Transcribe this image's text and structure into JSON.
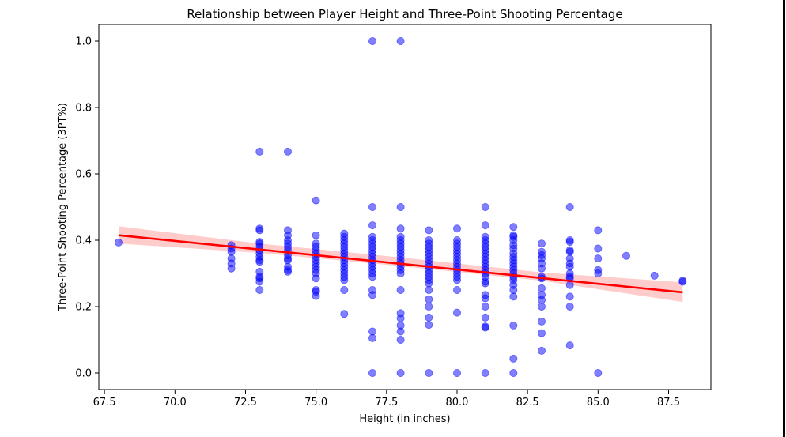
{
  "chart_data": {
    "type": "scatter",
    "title": "Relationship between Player Height and Three-Point Shooting Percentage",
    "xlabel": "Height (in inches)",
    "ylabel": "Three-Point Shooting Percentage (3PT%)",
    "xlim": [
      67.3,
      89.0
    ],
    "ylim": [
      -0.05,
      1.05
    ],
    "xticks": [
      67.5,
      70.0,
      72.5,
      75.0,
      77.5,
      80.0,
      82.5,
      85.0,
      87.5
    ],
    "xtick_labels": [
      "67.5",
      "70.0",
      "72.5",
      "75.0",
      "77.5",
      "80.0",
      "82.5",
      "85.0",
      "87.5"
    ],
    "yticks": [
      0.0,
      0.2,
      0.4,
      0.6,
      0.8,
      1.0
    ],
    "ytick_labels": [
      "0.0",
      "0.2",
      "0.4",
      "0.6",
      "0.8",
      "1.0"
    ],
    "grid": false,
    "colors": {
      "points": "#0000ff",
      "regression": "#ff0000",
      "band": "#ffcccc"
    },
    "regression": {
      "x": [
        68,
        88
      ],
      "y": [
        0.415,
        0.243
      ]
    },
    "confidence_band": {
      "x": [
        68,
        73,
        78,
        83,
        88
      ],
      "lower": [
        0.39,
        0.362,
        0.322,
        0.278,
        0.214
      ],
      "upper": [
        0.442,
        0.39,
        0.348,
        0.303,
        0.273
      ]
    },
    "points": [
      [
        68,
        0.393
      ],
      [
        72,
        0.385
      ],
      [
        72,
        0.375
      ],
      [
        72,
        0.365
      ],
      [
        72,
        0.345
      ],
      [
        72,
        0.33
      ],
      [
        72,
        0.315
      ],
      [
        73,
        0.667
      ],
      [
        73,
        0.435
      ],
      [
        73,
        0.43
      ],
      [
        73,
        0.395
      ],
      [
        73,
        0.39
      ],
      [
        73,
        0.38
      ],
      [
        73,
        0.37
      ],
      [
        73,
        0.36
      ],
      [
        73,
        0.35
      ],
      [
        73,
        0.34
      ],
      [
        73,
        0.335
      ],
      [
        73,
        0.305
      ],
      [
        73,
        0.29
      ],
      [
        73,
        0.285
      ],
      [
        73,
        0.275
      ],
      [
        73,
        0.25
      ],
      [
        74,
        0.667
      ],
      [
        74,
        0.43
      ],
      [
        74,
        0.415
      ],
      [
        74,
        0.4
      ],
      [
        74,
        0.39
      ],
      [
        74,
        0.38
      ],
      [
        74,
        0.37
      ],
      [
        74,
        0.355
      ],
      [
        74,
        0.345
      ],
      [
        74,
        0.34
      ],
      [
        74,
        0.32
      ],
      [
        74,
        0.31
      ],
      [
        74,
        0.305
      ],
      [
        75,
        0.52
      ],
      [
        75,
        0.415
      ],
      [
        75,
        0.39
      ],
      [
        75,
        0.38
      ],
      [
        75,
        0.37
      ],
      [
        75,
        0.36
      ],
      [
        75,
        0.35
      ],
      [
        75,
        0.34
      ],
      [
        75,
        0.33
      ],
      [
        75,
        0.32
      ],
      [
        75,
        0.31
      ],
      [
        75,
        0.3
      ],
      [
        75,
        0.285
      ],
      [
        75,
        0.25
      ],
      [
        75,
        0.245
      ],
      [
        75,
        0.232
      ],
      [
        76,
        0.42
      ],
      [
        76,
        0.41
      ],
      [
        76,
        0.4
      ],
      [
        76,
        0.39
      ],
      [
        76,
        0.38
      ],
      [
        76,
        0.37
      ],
      [
        76,
        0.36
      ],
      [
        76,
        0.35
      ],
      [
        76,
        0.34
      ],
      [
        76,
        0.33
      ],
      [
        76,
        0.32
      ],
      [
        76,
        0.31
      ],
      [
        76,
        0.3
      ],
      [
        76,
        0.29
      ],
      [
        76,
        0.28
      ],
      [
        76,
        0.25
      ],
      [
        76,
        0.178
      ],
      [
        77,
        1.0
      ],
      [
        77,
        0.5
      ],
      [
        77,
        0.445
      ],
      [
        77,
        0.41
      ],
      [
        77,
        0.4
      ],
      [
        77,
        0.39
      ],
      [
        77,
        0.38
      ],
      [
        77,
        0.37
      ],
      [
        77,
        0.36
      ],
      [
        77,
        0.35
      ],
      [
        77,
        0.34
      ],
      [
        77,
        0.33
      ],
      [
        77,
        0.32
      ],
      [
        77,
        0.31
      ],
      [
        77,
        0.3
      ],
      [
        77,
        0.29
      ],
      [
        77,
        0.25
      ],
      [
        77,
        0.235
      ],
      [
        77,
        0.125
      ],
      [
        77,
        0.105
      ],
      [
        77,
        0.0
      ],
      [
        78,
        1.0
      ],
      [
        78,
        0.5
      ],
      [
        78,
        0.435
      ],
      [
        78,
        0.41
      ],
      [
        78,
        0.4
      ],
      [
        78,
        0.39
      ],
      [
        78,
        0.38
      ],
      [
        78,
        0.37
      ],
      [
        78,
        0.36
      ],
      [
        78,
        0.35
      ],
      [
        78,
        0.34
      ],
      [
        78,
        0.33
      ],
      [
        78,
        0.32
      ],
      [
        78,
        0.31
      ],
      [
        78,
        0.3
      ],
      [
        78,
        0.25
      ],
      [
        78,
        0.18
      ],
      [
        78,
        0.165
      ],
      [
        78,
        0.143
      ],
      [
        78,
        0.125
      ],
      [
        78,
        0.1
      ],
      [
        78,
        0.0
      ],
      [
        79,
        0.43
      ],
      [
        79,
        0.4
      ],
      [
        79,
        0.39
      ],
      [
        79,
        0.38
      ],
      [
        79,
        0.37
      ],
      [
        79,
        0.36
      ],
      [
        79,
        0.35
      ],
      [
        79,
        0.34
      ],
      [
        79,
        0.33
      ],
      [
        79,
        0.32
      ],
      [
        79,
        0.31
      ],
      [
        79,
        0.3
      ],
      [
        79,
        0.29
      ],
      [
        79,
        0.28
      ],
      [
        79,
        0.27
      ],
      [
        79,
        0.25
      ],
      [
        79,
        0.222
      ],
      [
        79,
        0.2
      ],
      [
        79,
        0.167
      ],
      [
        79,
        0.145
      ],
      [
        79,
        0.0
      ],
      [
        80,
        0.435
      ],
      [
        80,
        0.4
      ],
      [
        80,
        0.39
      ],
      [
        80,
        0.38
      ],
      [
        80,
        0.37
      ],
      [
        80,
        0.36
      ],
      [
        80,
        0.35
      ],
      [
        80,
        0.34
      ],
      [
        80,
        0.33
      ],
      [
        80,
        0.32
      ],
      [
        80,
        0.31
      ],
      [
        80,
        0.3
      ],
      [
        80,
        0.29
      ],
      [
        80,
        0.28
      ],
      [
        80,
        0.25
      ],
      [
        80,
        0.182
      ],
      [
        80,
        0.0
      ],
      [
        81,
        0.5
      ],
      [
        81,
        0.445
      ],
      [
        81,
        0.41
      ],
      [
        81,
        0.4
      ],
      [
        81,
        0.39
      ],
      [
        81,
        0.38
      ],
      [
        81,
        0.37
      ],
      [
        81,
        0.36
      ],
      [
        81,
        0.35
      ],
      [
        81,
        0.34
      ],
      [
        81,
        0.33
      ],
      [
        81,
        0.32
      ],
      [
        81,
        0.31
      ],
      [
        81,
        0.3
      ],
      [
        81,
        0.29
      ],
      [
        81,
        0.275
      ],
      [
        81,
        0.27
      ],
      [
        81,
        0.235
      ],
      [
        81,
        0.225
      ],
      [
        81,
        0.2
      ],
      [
        81,
        0.167
      ],
      [
        81,
        0.14
      ],
      [
        81,
        0.137
      ],
      [
        81,
        0.0
      ],
      [
        82,
        0.44
      ],
      [
        82,
        0.415
      ],
      [
        82,
        0.41
      ],
      [
        82,
        0.4
      ],
      [
        82,
        0.385
      ],
      [
        82,
        0.375
      ],
      [
        82,
        0.36
      ],
      [
        82,
        0.35
      ],
      [
        82,
        0.34
      ],
      [
        82,
        0.33
      ],
      [
        82,
        0.32
      ],
      [
        82,
        0.31
      ],
      [
        82,
        0.3
      ],
      [
        82,
        0.29
      ],
      [
        82,
        0.28
      ],
      [
        82,
        0.265
      ],
      [
        82,
        0.25
      ],
      [
        82,
        0.23
      ],
      [
        82,
        0.143
      ],
      [
        82,
        0.043
      ],
      [
        82,
        0.0
      ],
      [
        83,
        0.39
      ],
      [
        83,
        0.365
      ],
      [
        83,
        0.355
      ],
      [
        83,
        0.345
      ],
      [
        83,
        0.33
      ],
      [
        83,
        0.315
      ],
      [
        83,
        0.29
      ],
      [
        83,
        0.285
      ],
      [
        83,
        0.255
      ],
      [
        83,
        0.235
      ],
      [
        83,
        0.22
      ],
      [
        83,
        0.2
      ],
      [
        83,
        0.155
      ],
      [
        83,
        0.12
      ],
      [
        83,
        0.067
      ],
      [
        84,
        0.5
      ],
      [
        84,
        0.4
      ],
      [
        84,
        0.395
      ],
      [
        84,
        0.37
      ],
      [
        84,
        0.365
      ],
      [
        84,
        0.345
      ],
      [
        84,
        0.33
      ],
      [
        84,
        0.32
      ],
      [
        84,
        0.3
      ],
      [
        84,
        0.29
      ],
      [
        84,
        0.285
      ],
      [
        84,
        0.265
      ],
      [
        84,
        0.23
      ],
      [
        84,
        0.2
      ],
      [
        84,
        0.083
      ],
      [
        85,
        0.43
      ],
      [
        85,
        0.375
      ],
      [
        85,
        0.345
      ],
      [
        85,
        0.31
      ],
      [
        85,
        0.3
      ],
      [
        85,
        0.0
      ],
      [
        86,
        0.353
      ],
      [
        87,
        0.293
      ],
      [
        88,
        0.278
      ],
      [
        88,
        0.275
      ]
    ]
  }
}
